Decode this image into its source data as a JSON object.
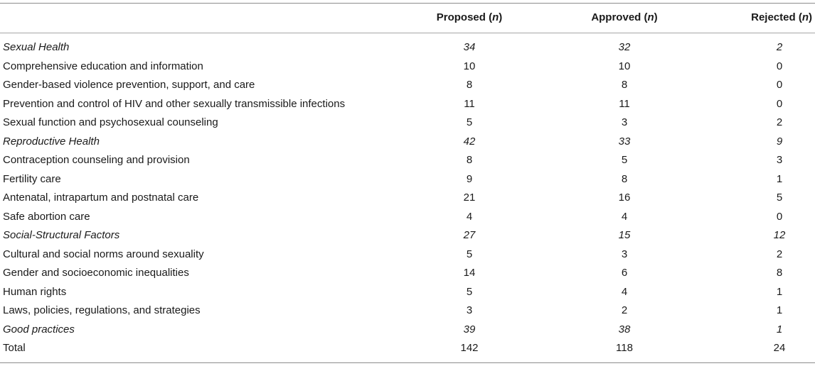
{
  "header": {
    "proposed": "Proposed",
    "approved": "Approved",
    "rejected": "Rejected",
    "n": "n"
  },
  "rows": [
    {
      "label": "Sexual Health",
      "proposed": "34",
      "approved": "32",
      "rejected": "2",
      "category": true
    },
    {
      "label": "Comprehensive education and information",
      "proposed": "10",
      "approved": "10",
      "rejected": "0"
    },
    {
      "label": "Gender-based violence prevention, support, and care",
      "proposed": "8",
      "approved": "8",
      "rejected": "0"
    },
    {
      "label": "Prevention and control of HIV and other sexually transmissible infections",
      "proposed": "11",
      "approved": "11",
      "rejected": "0"
    },
    {
      "label": "Sexual function and psychosexual counseling",
      "proposed": "5",
      "approved": "3",
      "rejected": "2"
    },
    {
      "label": "Reproductive Health",
      "proposed": "42",
      "approved": "33",
      "rejected": "9",
      "category": true
    },
    {
      "label": "Contraception counseling and provision",
      "proposed": "8",
      "approved": "5",
      "rejected": "3"
    },
    {
      "label": "Fertility care",
      "proposed": "9",
      "approved": "8",
      "rejected": "1"
    },
    {
      "label": "Antenatal, intrapartum and postnatal care",
      "proposed": "21",
      "approved": "16",
      "rejected": "5"
    },
    {
      "label": "Safe abortion care",
      "proposed": "4",
      "approved": "4",
      "rejected": "0"
    },
    {
      "label": "Social-Structural Factors",
      "proposed": "27",
      "approved": "15",
      "rejected": "12",
      "category": true
    },
    {
      "label": "Cultural and social norms around sexuality",
      "proposed": "5",
      "approved": "3",
      "rejected": "2"
    },
    {
      "label": "Gender and socioeconomic inequalities",
      "proposed": "14",
      "approved": "6",
      "rejected": "8"
    },
    {
      "label": "Human rights",
      "proposed": "5",
      "approved": "4",
      "rejected": "1"
    },
    {
      "label": "Laws, policies, regulations, and strategies",
      "proposed": "3",
      "approved": "2",
      "rejected": "1"
    },
    {
      "label": "Good practices",
      "proposed": "39",
      "approved": "38",
      "rejected": "1",
      "category": true
    },
    {
      "label": "Total",
      "proposed": "142",
      "approved": "118",
      "rejected": "24"
    }
  ]
}
